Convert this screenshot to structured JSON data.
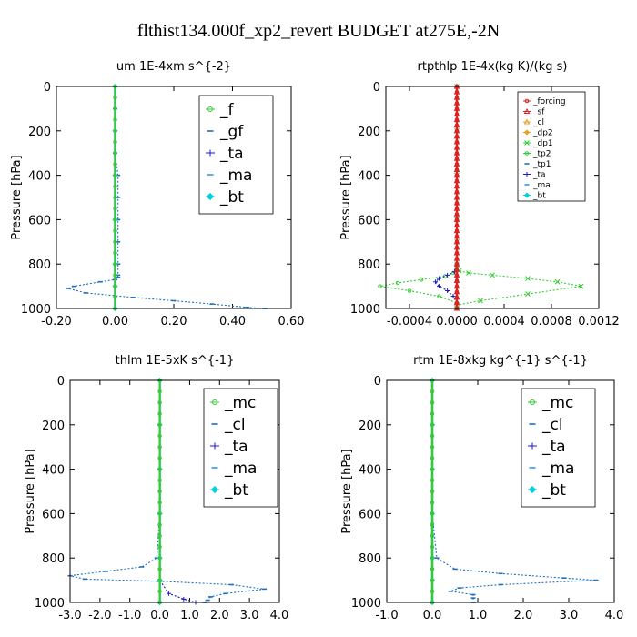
{
  "page": {
    "title": "flthist134.000f_xp2_revert  BUDGET at275E,-2N"
  },
  "chart_data": [
    {
      "type": "line",
      "title": "um   1E-4xm s^{-2}",
      "ylabel": "Pressure [hPa]",
      "xlim": [
        -0.2,
        0.6
      ],
      "ylim": [
        0,
        1000
      ],
      "y_inverted": true,
      "xticks": [
        "-0.20",
        "0.00",
        "0.20",
        "0.40",
        "0.60"
      ],
      "xtick_values": [
        -0.2,
        0.0,
        0.2,
        0.4,
        0.6
      ],
      "yticks": [
        "0",
        "200",
        "400",
        "600",
        "800",
        "1000"
      ],
      "ytick_values": [
        0,
        200,
        400,
        600,
        800,
        1000
      ],
      "legend_position": "top-right",
      "legend_size": "large",
      "legend": [
        {
          "label": "_f",
          "color": "#33cc33",
          "marker": "circle"
        },
        {
          "label": "_gf",
          "color": "#1f6fbf",
          "marker": "dash"
        },
        {
          "label": "_ta",
          "color": "#1a1acc",
          "marker": "plus"
        },
        {
          "label": "_ma",
          "color": "#3399dd",
          "marker": "dash"
        },
        {
          "label": "_bt",
          "color": "#00d0e0",
          "marker": "diamond"
        }
      ],
      "series": [
        {
          "name": "_gf",
          "color": "#1f6fbf",
          "x": [
            0.0,
            0.0,
            0.0,
            0.0,
            0.01,
            0.01,
            0.01,
            0.01,
            0.01,
            0.01,
            0.01,
            0.0,
            -0.05,
            -0.14,
            -0.16,
            -0.1,
            0.06,
            0.2,
            0.33,
            0.45,
            0.51
          ],
          "y": [
            0,
            100,
            200,
            300,
            400,
            500,
            600,
            700,
            800,
            850,
            860,
            870,
            880,
            900,
            910,
            930,
            950,
            965,
            980,
            995,
            1000
          ]
        },
        {
          "name": "_ta",
          "color": "#1a1acc",
          "x": [
            0.0,
            0.0,
            0.0,
            0.0,
            0.0,
            0.0,
            0.0
          ],
          "y": [
            0,
            200,
            400,
            600,
            800,
            900,
            1000
          ]
        },
        {
          "name": "_ma",
          "color": "#3399dd",
          "x": [
            0.0,
            0.0,
            0.0,
            0.0,
            0.0,
            0.0,
            0.0
          ],
          "y": [
            0,
            200,
            400,
            600,
            800,
            900,
            1000
          ]
        },
        {
          "name": "_bt",
          "color": "#00d0e0",
          "x": [
            0.0,
            0.0,
            0.0,
            0.0,
            0.0,
            0.0,
            0.0
          ],
          "y": [
            0,
            200,
            400,
            600,
            800,
            900,
            1000
          ]
        },
        {
          "name": "_f",
          "color": "#33cc33",
          "x": [
            0.0,
            0.0,
            0.0,
            0.0,
            0.0,
            0.0,
            0.0,
            0.0,
            0.0,
            0.0,
            0.0,
            0.0,
            0.0,
            0.0,
            0.0,
            0.0,
            0.0,
            0.0,
            0.0,
            0.0,
            0.0
          ],
          "y": [
            0,
            50,
            100,
            150,
            200,
            250,
            300,
            350,
            400,
            450,
            500,
            550,
            600,
            650,
            700,
            750,
            800,
            850,
            900,
            950,
            1000
          ]
        }
      ]
    },
    {
      "type": "line",
      "title": "rtpthlp   1E-4x(kg K)/(kg s)",
      "ylabel": "Pressure [hPa]",
      "xlim": [
        -0.0006,
        0.0012
      ],
      "ylim": [
        0,
        1000
      ],
      "y_inverted": true,
      "xticks": [
        "-0.0004",
        "0.0000",
        "0.0004",
        "0.0008",
        "0.0012"
      ],
      "xtick_values": [
        -0.0004,
        0.0,
        0.0004,
        0.0008,
        0.0012
      ],
      "yticks": [
        "0",
        "200",
        "400",
        "600",
        "800",
        "1000"
      ],
      "ytick_values": [
        0,
        200,
        400,
        600,
        800,
        1000
      ],
      "legend_position": "top-right",
      "legend_size": "small",
      "legend": [
        {
          "label": "_forcing",
          "color": "#dd2222",
          "marker": "circle"
        },
        {
          "label": "_sf",
          "color": "#dd2222",
          "marker": "triangle"
        },
        {
          "label": "_cl",
          "color": "#e8a020",
          "marker": "triangle"
        },
        {
          "label": "_dp2",
          "color": "#e8a020",
          "marker": "diamond"
        },
        {
          "label": "_dp1",
          "color": "#33cc33",
          "marker": "cross"
        },
        {
          "label": "_tp2",
          "color": "#33cc33",
          "marker": "circle"
        },
        {
          "label": "_tp1",
          "color": "#1f6fbf",
          "marker": "dash"
        },
        {
          "label": "_ta",
          "color": "#1a1acc",
          "marker": "plus"
        },
        {
          "label": "_ma",
          "color": "#3399dd",
          "marker": "dash"
        },
        {
          "label": "_bt",
          "color": "#00d0e0",
          "marker": "diamond"
        }
      ],
      "series": [
        {
          "name": "_dp1",
          "color": "#33cc33",
          "x": [
            0.0,
            0.0,
            0.0,
            0.0,
            0.0,
            0.0,
            0.0,
            2e-05,
            0.0001,
            0.0003,
            0.0006,
            0.00085,
            0.00105,
            0.0006,
            0.0002,
            0.0,
            0.0
          ],
          "y": [
            0,
            200,
            400,
            600,
            700,
            800,
            820,
            830,
            840,
            850,
            865,
            880,
            900,
            935,
            965,
            985,
            1000
          ]
        },
        {
          "name": "_tp2",
          "color": "#33cc33",
          "x": [
            0.0,
            0.0,
            0.0,
            0.0,
            0.0,
            -3e-05,
            -0.0001,
            -0.0003,
            -0.0005,
            -0.00065,
            -0.0004,
            -0.00015,
            0.0,
            0.0
          ],
          "y": [
            0,
            200,
            400,
            600,
            800,
            840,
            855,
            870,
            885,
            900,
            920,
            945,
            975,
            1000
          ]
        },
        {
          "name": "_ta",
          "color": "#1a1acc",
          "x": [
            0.0,
            0.0,
            0.0,
            -2e-05,
            -8e-05,
            -0.00015,
            -0.00018,
            -0.00015,
            -8e-05,
            -3e-05,
            0.0,
            0.0
          ],
          "y": [
            0,
            400,
            800,
            835,
            850,
            865,
            880,
            900,
            920,
            945,
            975,
            1000
          ]
        },
        {
          "name": "_sf",
          "color": "#dd2222",
          "x": [
            0.0,
            0.0,
            0.0,
            0.0,
            0.0,
            0.0,
            0.0,
            0.0,
            0.0,
            0.0,
            0.0,
            0.0,
            0.0,
            0.0,
            0.0,
            0.0,
            0.0,
            0.0,
            0.0,
            0.0,
            0.0,
            0.0,
            0.0,
            0.0,
            0.0,
            0.0,
            0.0,
            0.0,
            0.0,
            0.0,
            0.0,
            0.0,
            0.0,
            0.0,
            0.0,
            0.0,
            0.0,
            0.0,
            0.0,
            0.0,
            0.0
          ],
          "y": [
            0,
            25,
            50,
            75,
            100,
            125,
            150,
            175,
            200,
            225,
            250,
            275,
            300,
            325,
            350,
            375,
            400,
            425,
            450,
            475,
            500,
            525,
            550,
            575,
            600,
            625,
            650,
            675,
            700,
            725,
            750,
            775,
            800,
            825,
            850,
            875,
            900,
            925,
            950,
            975,
            1000
          ]
        },
        {
          "name": "_forcing",
          "color": "#dd2222",
          "x": [
            0.0,
            0.0,
            0.0,
            0.0,
            0.0,
            0.0,
            0.0,
            0.0,
            0.0,
            0.0,
            0.0,
            0.0,
            0.0,
            0.0,
            0.0,
            0.0,
            0.0,
            0.0,
            0.0,
            0.0,
            0.0,
            0.0,
            0.0,
            0.0,
            0.0,
            0.0,
            0.0,
            0.0,
            0.0,
            0.0,
            0.0,
            0.0,
            0.0,
            0.0,
            0.0,
            0.0,
            0.0,
            0.0,
            0.0,
            0.0,
            0.0
          ],
          "y": [
            0,
            25,
            50,
            75,
            100,
            125,
            150,
            175,
            200,
            225,
            250,
            275,
            300,
            325,
            350,
            375,
            400,
            425,
            450,
            475,
            500,
            525,
            550,
            575,
            600,
            625,
            650,
            675,
            700,
            725,
            750,
            775,
            800,
            825,
            850,
            875,
            900,
            925,
            950,
            975,
            1000
          ]
        }
      ]
    },
    {
      "type": "line",
      "title": "thlm   1E-5xK  s^{-1}",
      "ylabel": "Pressure [hPa]",
      "xlim": [
        -3.0,
        4.0
      ],
      "ylim": [
        0,
        1000
      ],
      "y_inverted": true,
      "xticks": [
        "-3.0",
        "-2.0",
        "-1.0",
        "0.0",
        "1.0",
        "2.0",
        "3.0",
        "4.0"
      ],
      "xtick_values": [
        -3.0,
        -2.0,
        -1.0,
        0.0,
        1.0,
        2.0,
        3.0,
        4.0
      ],
      "yticks": [
        "0",
        "200",
        "400",
        "600",
        "800",
        "1000"
      ],
      "ytick_values": [
        0,
        200,
        400,
        600,
        800,
        1000
      ],
      "legend_position": "top-right",
      "legend_size": "large",
      "legend": [
        {
          "label": "_mc",
          "color": "#33cc33",
          "marker": "circle"
        },
        {
          "label": "_cl",
          "color": "#1f6fbf",
          "marker": "dash"
        },
        {
          "label": "_ta",
          "color": "#1a1acc",
          "marker": "plus"
        },
        {
          "label": "_ma",
          "color": "#3399dd",
          "marker": "dash"
        },
        {
          "label": "_bt",
          "color": "#00d0e0",
          "marker": "diamond"
        }
      ],
      "series": [
        {
          "name": "_cl",
          "color": "#1f6fbf",
          "x": [
            0.0,
            0.0,
            0.0,
            0.0,
            -0.1,
            -0.6,
            -1.8,
            -3.0,
            -2.5,
            0.0,
            2.4,
            3.5,
            2.2,
            1.7,
            1.6,
            1.5
          ],
          "y": [
            0,
            200,
            400,
            600,
            800,
            840,
            860,
            880,
            895,
            905,
            920,
            940,
            960,
            975,
            990,
            1000
          ]
        },
        {
          "name": "_ta",
          "color": "#1a1acc",
          "x": [
            0.0,
            0.0,
            0.0,
            0.0,
            0.0,
            0.0,
            0.3,
            0.8,
            1.2
          ],
          "y": [
            0,
            200,
            400,
            600,
            800,
            900,
            960,
            985,
            1000
          ]
        },
        {
          "name": "_ma",
          "color": "#3399dd",
          "x": [
            0.0,
            0.0,
            0.0,
            0.0,
            0.0,
            0.0,
            0.0
          ],
          "y": [
            0,
            200,
            400,
            600,
            800,
            900,
            1000
          ]
        },
        {
          "name": "_bt",
          "color": "#00d0e0",
          "x": [
            0.0,
            0.0,
            0.0,
            0.0,
            0.0,
            0.0,
            0.0
          ],
          "y": [
            0,
            200,
            400,
            600,
            800,
            900,
            1000
          ]
        },
        {
          "name": "_mc",
          "color": "#33cc33",
          "x": [
            0.0,
            0.0,
            0.0,
            0.0,
            0.0,
            0.0,
            0.0,
            0.0,
            0.0,
            0.0,
            0.0,
            0.0,
            0.0,
            0.0,
            0.0,
            0.0,
            0.0,
            0.0,
            0.0,
            0.0,
            0.0
          ],
          "y": [
            0,
            50,
            100,
            150,
            200,
            250,
            300,
            350,
            400,
            450,
            500,
            550,
            600,
            650,
            700,
            750,
            800,
            850,
            900,
            950,
            1000
          ]
        }
      ]
    },
    {
      "type": "line",
      "title": "rtm   1E-8xkg kg^{-1} s^{-1}",
      "ylabel": "Pressure [hPa]",
      "xlim": [
        -1.0,
        4.0
      ],
      "ylim": [
        0,
        1000
      ],
      "y_inverted": true,
      "xticks": [
        "-1.0",
        "0.0",
        "1.0",
        "2.0",
        "3.0",
        "4.0"
      ],
      "xtick_values": [
        -1.0,
        0.0,
        1.0,
        2.0,
        3.0,
        4.0
      ],
      "yticks": [
        "0",
        "200",
        "400",
        "600",
        "800",
        "1000"
      ],
      "ytick_values": [
        0,
        200,
        400,
        600,
        800,
        1000
      ],
      "legend_position": "top-right",
      "legend_size": "large",
      "legend": [
        {
          "label": "_mc",
          "color": "#33cc33",
          "marker": "circle"
        },
        {
          "label": "_cl",
          "color": "#1f6fbf",
          "marker": "dash"
        },
        {
          "label": "_ta",
          "color": "#1a1acc",
          "marker": "plus"
        },
        {
          "label": "_ma",
          "color": "#3399dd",
          "marker": "dash"
        },
        {
          "label": "_bt",
          "color": "#00d0e0",
          "marker": "diamond"
        }
      ],
      "series": [
        {
          "name": "_cl",
          "color": "#1f6fbf",
          "x": [
            0.0,
            0.0,
            0.0,
            0.0,
            0.1,
            0.5,
            1.5,
            2.9,
            3.6,
            1.5,
            0.6,
            0.4,
            0.9,
            0.9,
            0.9
          ],
          "y": [
            0,
            200,
            400,
            600,
            800,
            850,
            870,
            890,
            900,
            920,
            935,
            950,
            965,
            980,
            1000
          ]
        },
        {
          "name": "_ta",
          "color": "#1a1acc",
          "x": [
            0.0,
            0.0,
            0.0,
            0.0,
            0.0,
            0.0,
            0.0
          ],
          "y": [
            0,
            200,
            400,
            600,
            800,
            900,
            1000
          ]
        },
        {
          "name": "_ma",
          "color": "#3399dd",
          "x": [
            0.0,
            0.0,
            0.0,
            0.0,
            0.0,
            0.0,
            0.0
          ],
          "y": [
            0,
            200,
            400,
            600,
            800,
            900,
            1000
          ]
        },
        {
          "name": "_bt",
          "color": "#00d0e0",
          "x": [
            0.0,
            0.0,
            0.0,
            0.0,
            0.0,
            0.0,
            0.0
          ],
          "y": [
            0,
            200,
            400,
            600,
            800,
            900,
            1000
          ]
        },
        {
          "name": "_mc",
          "color": "#33cc33",
          "x": [
            0.0,
            0.0,
            0.0,
            0.0,
            0.0,
            0.0,
            0.0,
            0.0,
            0.0,
            0.0,
            0.0,
            0.0,
            0.0,
            0.0,
            0.0,
            0.0,
            0.0,
            0.0,
            0.0,
            0.0,
            0.0
          ],
          "y": [
            0,
            50,
            100,
            150,
            200,
            250,
            300,
            350,
            400,
            450,
            500,
            550,
            600,
            650,
            700,
            750,
            800,
            850,
            900,
            950,
            1000
          ]
        }
      ]
    }
  ]
}
